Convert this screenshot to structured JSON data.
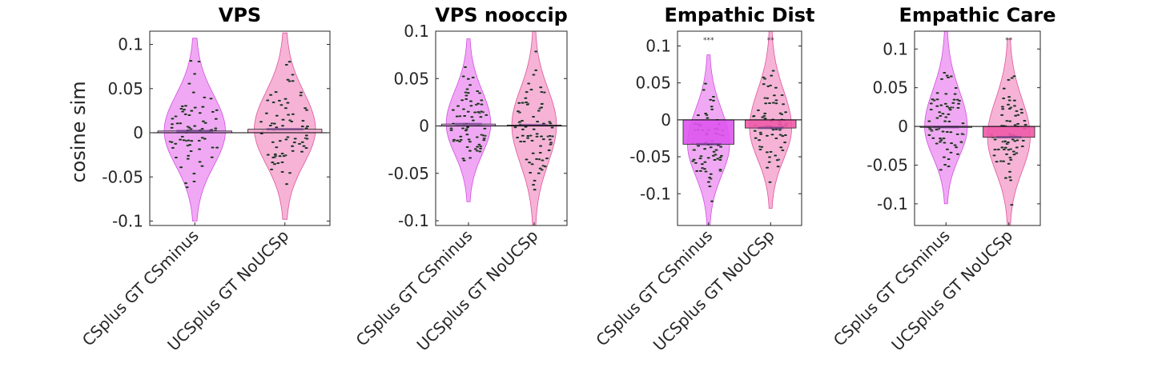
{
  "figure": {
    "ylabel": "cosine sim"
  },
  "colors": {
    "violin_a": "#f0a8f4",
    "violin_a_edge": "#d24fe0",
    "violin_b": "#f6b3d6",
    "violin_b_edge": "#e0559b",
    "bar_a_light": "#eaa3f2",
    "bar_b_light": "#f3a9cf",
    "bar_a_strong": "#de55ee",
    "bar_b_strong": "#f05aa8",
    "point": "#2a2a2a",
    "axis": "#262626",
    "zero": "#000000"
  },
  "chart_data": [
    {
      "type": "bar",
      "title": "VPS",
      "categories": [
        "CSplus GT CSminus",
        "UCSplus GT NoUCSp"
      ],
      "values": [
        0.002,
        0.004
      ],
      "ylim": [
        -0.105,
        0.115
      ],
      "yticks": [
        0.1,
        0.05,
        0,
        -0.05,
        -0.1
      ],
      "ytick_labels": [
        "0.1",
        "0.05",
        "0",
        "-0.05",
        "-0.1"
      ],
      "violins": [
        [
          -0.1,
          0.107
        ],
        [
          -0.098,
          0.113
        ]
      ],
      "significance": [
        "",
        ""
      ],
      "bar_style": "light",
      "grid": false
    },
    {
      "type": "bar",
      "title": "VPS nooccip",
      "categories": [
        "CSplus GT CSminus",
        "UCSplus GT NoUCSp"
      ],
      "values": [
        0.002,
        0.001
      ],
      "ylim": [
        -0.105,
        0.1
      ],
      "yticks": [
        0.1,
        0.05,
        0,
        -0.05,
        -0.1
      ],
      "ytick_labels": [
        "0.1",
        "0.05",
        "0",
        "-0.05",
        "-0.1"
      ],
      "violins": [
        [
          -0.08,
          0.092
        ],
        [
          -0.105,
          0.1
        ]
      ],
      "significance": [
        "",
        ""
      ],
      "bar_style": "light",
      "grid": false
    },
    {
      "type": "bar",
      "title": "Empathic Dist",
      "categories": [
        "CSplus GT CSminus",
        "UCSplus GT NoUCSp"
      ],
      "values": [
        -0.033,
        -0.011
      ],
      "ylim": [
        -0.143,
        0.12
      ],
      "yticks": [
        0.1,
        0.05,
        0,
        -0.05,
        -0.1
      ],
      "ytick_labels": [
        "0.1",
        "0.05",
        "0",
        "-0.05",
        "-0.1"
      ],
      "violins": [
        [
          -0.143,
          0.088
        ],
        [
          -0.12,
          0.12
        ]
      ],
      "significance": [
        "***",
        "**"
      ],
      "bar_style": "strong",
      "grid": false
    },
    {
      "type": "bar",
      "title": "Empathic Care",
      "categories": [
        "CSplus GT CSminus",
        "UCSplus GT NoUCSp"
      ],
      "values": [
        -0.001,
        -0.014
      ],
      "ylim": [
        -0.128,
        0.123
      ],
      "yticks": [
        0.1,
        0.05,
        0,
        -0.05,
        -0.1
      ],
      "ytick_labels": [
        "0.1",
        "0.05",
        "0",
        "-0.05",
        "-0.1"
      ],
      "violins": [
        [
          -0.1,
          0.123
        ],
        [
          -0.128,
          0.113
        ]
      ],
      "significance": [
        "",
        "**"
      ],
      "bar_style": "mixed",
      "grid": false
    }
  ]
}
